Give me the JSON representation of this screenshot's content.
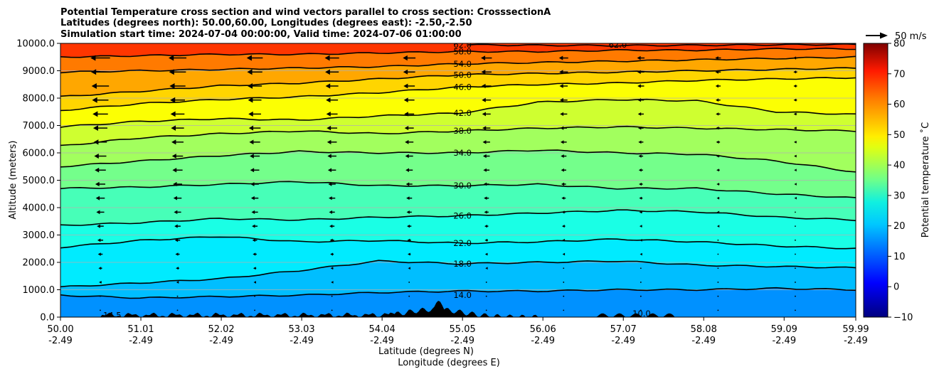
{
  "chart_data": {
    "type": "contourf",
    "title": [
      "Potential Temperature cross section and wind vectors parallel to cross section: CrosssectionA",
      "Latitudes (degrees north): 50.00,60.00, Longitudes (degrees east): -2.50,-2.50",
      "Simulation start time: 2024-07-04 00:00:00, Valid time: 2024-07-06 01:00:00"
    ],
    "xlabel": [
      "Latitude (degrees N)",
      "Longitude (degrees E)"
    ],
    "ylabel": "Altitude (meters)",
    "xlim": [
      50.0,
      59.99
    ],
    "ylim": [
      0,
      10000
    ],
    "x_ticks": [
      {
        "lat": "50.00",
        "lon": "-2.49",
        "value": 50.0
      },
      {
        "lat": "51.01",
        "lon": "-2.49",
        "value": 51.01
      },
      {
        "lat": "52.02",
        "lon": "-2.49",
        "value": 52.02
      },
      {
        "lat": "53.03",
        "lon": "-2.49",
        "value": 53.03
      },
      {
        "lat": "54.04",
        "lon": "-2.49",
        "value": 54.04
      },
      {
        "lat": "55.05",
        "lon": "-2.49",
        "value": 55.05
      },
      {
        "lat": "56.06",
        "lon": "-2.49",
        "value": 56.06
      },
      {
        "lat": "57.07",
        "lon": "-2.49",
        "value": 57.07
      },
      {
        "lat": "58.08",
        "lon": "-2.49",
        "value": 58.08
      },
      {
        "lat": "59.09",
        "lon": "-2.49",
        "value": 59.09
      },
      {
        "lat": "59.99",
        "lon": "-2.49",
        "value": 59.99
      }
    ],
    "y_ticks": [
      {
        "label": "0.0",
        "value": 0
      },
      {
        "label": "1000.0",
        "value": 1000
      },
      {
        "label": "2000.0",
        "value": 2000
      },
      {
        "label": "3000.0",
        "value": 3000
      },
      {
        "label": "4000.0",
        "value": 4000
      },
      {
        "label": "5000.0",
        "value": 5000
      },
      {
        "label": "6000.0",
        "value": 6000
      },
      {
        "label": "7000.0",
        "value": 7000
      },
      {
        "label": "8000.0",
        "value": 8000
      },
      {
        "label": "9000.0",
        "value": 9000
      },
      {
        "label": "10000.0",
        "value": 10000
      }
    ],
    "grid": "horizontal",
    "colorbar": {
      "label": "Potential temperature $^\\circ$C",
      "label_display": "Potential temperature ˚C",
      "range": [
        -10,
        80
      ],
      "colormap": "jet",
      "ticks": [
        {
          "label": "−10",
          "value": -10
        },
        {
          "label": "0",
          "value": 0
        },
        {
          "label": "10",
          "value": 10
        },
        {
          "label": "20",
          "value": 20
        },
        {
          "label": "30",
          "value": 30
        },
        {
          "label": "40",
          "value": 40
        },
        {
          "label": "50",
          "value": 50
        },
        {
          "label": "60",
          "value": 60
        },
        {
          "label": "70",
          "value": 70
        },
        {
          "label": "80",
          "value": 80
        }
      ]
    },
    "quiver_key": "50 m/s",
    "contours": [
      {
        "level": 14,
        "label": "14.0",
        "label_lat": 55.05,
        "label_alt": 800,
        "profile": [
          [
            50.0,
            800
          ],
          [
            51.0,
            700
          ],
          [
            52.0,
            750
          ],
          [
            53.0,
            800
          ],
          [
            54.0,
            900
          ],
          [
            55.0,
            950
          ],
          [
            56.0,
            950
          ],
          [
            57.0,
            1000
          ],
          [
            58.0,
            1000
          ],
          [
            59.0,
            1050
          ],
          [
            59.99,
            1000
          ]
        ]
      },
      {
        "level": 18,
        "label": "18.0",
        "label_lat": 55.05,
        "label_alt": 1950,
        "profile": [
          [
            50.0,
            1100
          ],
          [
            51.0,
            1250
          ],
          [
            52.0,
            1400
          ],
          [
            53.0,
            1700
          ],
          [
            54.0,
            2050
          ],
          [
            55.0,
            1950
          ],
          [
            56.0,
            2000
          ],
          [
            57.0,
            2050
          ],
          [
            58.0,
            1900
          ],
          [
            59.0,
            1850
          ],
          [
            59.99,
            1800
          ]
        ]
      },
      {
        "level": 22,
        "label": "22.0",
        "label_lat": 55.05,
        "label_alt": 2700,
        "profile": [
          [
            50.0,
            2550
          ],
          [
            51.0,
            2800
          ],
          [
            52.0,
            2950
          ],
          [
            53.0,
            2750
          ],
          [
            54.0,
            2800
          ],
          [
            55.0,
            2700
          ],
          [
            56.0,
            2750
          ],
          [
            57.0,
            2850
          ],
          [
            58.0,
            2750
          ],
          [
            59.0,
            2600
          ],
          [
            59.99,
            2500
          ]
        ]
      },
      {
        "level": 26,
        "label": "26.0",
        "label_lat": 55.05,
        "label_alt": 3700,
        "profile": [
          [
            50.0,
            3350
          ],
          [
            51.0,
            3450
          ],
          [
            52.0,
            3600
          ],
          [
            53.0,
            3550
          ],
          [
            54.0,
            3650
          ],
          [
            55.0,
            3700
          ],
          [
            56.0,
            3800
          ],
          [
            57.0,
            3900
          ],
          [
            58.0,
            3850
          ],
          [
            59.0,
            3650
          ],
          [
            59.99,
            3550
          ]
        ]
      },
      {
        "level": 30,
        "label": "30.0",
        "label_lat": 55.05,
        "label_alt": 4800,
        "profile": [
          [
            50.0,
            4700
          ],
          [
            51.0,
            4750
          ],
          [
            52.0,
            4850
          ],
          [
            53.0,
            4950
          ],
          [
            54.0,
            4800
          ],
          [
            55.0,
            4800
          ],
          [
            56.0,
            4850
          ],
          [
            57.0,
            4700
          ],
          [
            58.0,
            4700
          ],
          [
            59.0,
            4500
          ],
          [
            59.99,
            4350
          ]
        ]
      },
      {
        "level": 34,
        "label": "34.0",
        "label_lat": 55.05,
        "label_alt": 6000,
        "profile": [
          [
            50.0,
            5500
          ],
          [
            51.0,
            5700
          ],
          [
            52.0,
            5900
          ],
          [
            53.0,
            6050
          ],
          [
            54.0,
            6000
          ],
          [
            55.0,
            6000
          ],
          [
            56.0,
            6100
          ],
          [
            57.0,
            6000
          ],
          [
            58.0,
            5950
          ],
          [
            59.0,
            5700
          ],
          [
            59.99,
            5300
          ]
        ]
      },
      {
        "level": 38,
        "label": "38.0",
        "label_lat": 55.05,
        "label_alt": 6800,
        "profile": [
          [
            50.0,
            6250
          ],
          [
            51.0,
            6550
          ],
          [
            52.0,
            6700
          ],
          [
            53.0,
            6800
          ],
          [
            54.0,
            6700
          ],
          [
            55.0,
            6800
          ],
          [
            56.0,
            6900
          ],
          [
            57.0,
            6950
          ],
          [
            58.0,
            6900
          ],
          [
            59.0,
            6850
          ],
          [
            59.99,
            6800
          ]
        ]
      },
      {
        "level": 42,
        "label": "42.0",
        "label_lat": 55.05,
        "label_alt": 7450,
        "profile": [
          [
            50.0,
            6950
          ],
          [
            51.0,
            7150
          ],
          [
            52.0,
            7250
          ],
          [
            53.0,
            7200
          ],
          [
            54.0,
            7350
          ],
          [
            55.0,
            7450
          ],
          [
            56.0,
            7850
          ],
          [
            57.0,
            7950
          ],
          [
            58.0,
            7900
          ],
          [
            59.0,
            7500
          ],
          [
            59.99,
            7400
          ]
        ]
      },
      {
        "level": 46,
        "label": "46.0",
        "label_lat": 55.05,
        "label_alt": 8400,
        "profile": [
          [
            50.0,
            7550
          ],
          [
            51.0,
            7800
          ],
          [
            52.0,
            7950
          ],
          [
            53.0,
            8050
          ],
          [
            54.0,
            8200
          ],
          [
            55.0,
            8400
          ],
          [
            56.0,
            8500
          ],
          [
            57.0,
            8550
          ],
          [
            58.0,
            8650
          ],
          [
            59.0,
            8700
          ],
          [
            59.99,
            8750
          ]
        ]
      },
      {
        "level": 50,
        "label": "50.0",
        "label_lat": 55.05,
        "label_alt": 8850,
        "profile": [
          [
            50.0,
            8050
          ],
          [
            51.0,
            8250
          ],
          [
            52.0,
            8450
          ],
          [
            53.0,
            8550
          ],
          [
            54.0,
            8700
          ],
          [
            55.0,
            8850
          ],
          [
            56.0,
            8900
          ],
          [
            57.0,
            8950
          ],
          [
            58.0,
            9000
          ],
          [
            59.0,
            9050
          ],
          [
            59.99,
            9100
          ]
        ]
      },
      {
        "level": 54,
        "label": "54.0",
        "label_lat": 55.05,
        "label_alt": 9250,
        "profile": [
          [
            50.0,
            8950
          ],
          [
            51.0,
            9000
          ],
          [
            52.0,
            9050
          ],
          [
            53.0,
            9100
          ],
          [
            54.0,
            9150
          ],
          [
            55.0,
            9250
          ],
          [
            56.0,
            9300
          ],
          [
            57.0,
            9350
          ],
          [
            58.0,
            9400
          ],
          [
            59.0,
            9450
          ],
          [
            59.99,
            9500
          ]
        ]
      },
      {
        "level": 58,
        "label": "58.0",
        "label_lat": 55.05,
        "label_alt": 9700,
        "profile": [
          [
            50.0,
            9500
          ],
          [
            51.0,
            9550
          ],
          [
            52.0,
            9600
          ],
          [
            53.0,
            9600
          ],
          [
            54.0,
            9650
          ],
          [
            55.0,
            9700
          ],
          [
            56.0,
            9700
          ],
          [
            57.0,
            9750
          ],
          [
            58.0,
            9750
          ],
          [
            59.0,
            9800
          ],
          [
            59.99,
            9800
          ]
        ]
      },
      {
        "level": 62,
        "label": "62.0",
        "label_lat": 55.05,
        "label_alt": 9950,
        "profile": [
          [
            55.0,
            9950
          ],
          [
            56.0,
            9930
          ],
          [
            57.0,
            9920
          ],
          [
            58.0,
            9930
          ],
          [
            59.0,
            9950
          ],
          [
            59.99,
            9960
          ]
        ]
      }
    ],
    "extra_contour_labels": [
      {
        "label": "14.5",
        "lat": 50.65,
        "alt": 60
      },
      {
        "label": "10.0",
        "lat": 57.3,
        "alt": 130
      },
      {
        "label": "62.0",
        "lat": 57.0,
        "alt": 9950
      }
    ],
    "terrain_peak_alt_m": 600,
    "wind_vectors": "arrows along cross section; strongest (pointing toward lower latitude) near 9500 m at the southern end, weakening toward the north and toward the surface"
  }
}
